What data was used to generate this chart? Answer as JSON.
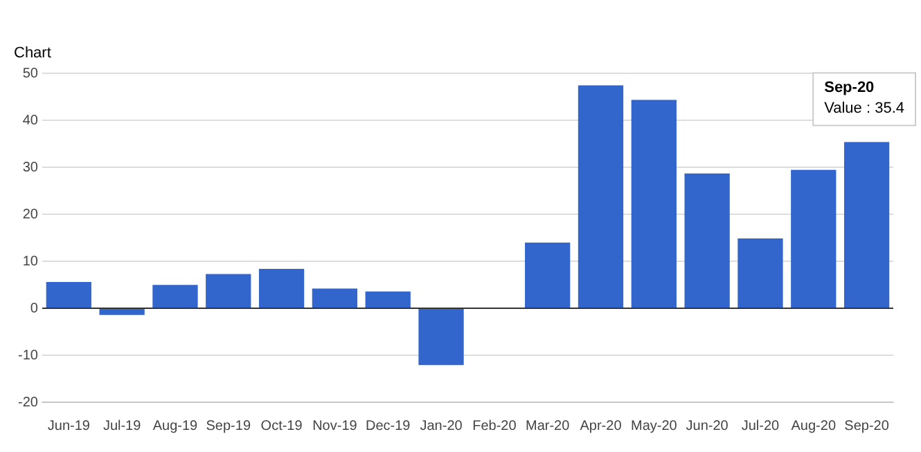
{
  "chart_data": {
    "type": "bar",
    "title": "Chart",
    "categories": [
      "Jun-19",
      "Jul-19",
      "Aug-19",
      "Sep-19",
      "Oct-19",
      "Nov-19",
      "Dec-19",
      "Jan-20",
      "Feb-20",
      "Mar-20",
      "Apr-20",
      "May-20",
      "Jun-20",
      "Jul-20",
      "Aug-20",
      "Sep-20"
    ],
    "values": [
      5.6,
      -1.4,
      5,
      7.3,
      8.4,
      4.2,
      3.6,
      -12.1,
      0,
      14,
      47.5,
      44.4,
      28.7,
      14.9,
      29.5,
      35.4
    ],
    "color": "#3366cc",
    "ylim": [
      -20,
      50
    ],
    "yticks": [
      -20,
      -10,
      0,
      10,
      20,
      30,
      40,
      50
    ],
    "grid": "y",
    "legend": false,
    "annotations": [
      {
        "text": "Sep-20\nValue : 35.4",
        "x": "Sep-20",
        "y": 35.4
      }
    ]
  }
}
